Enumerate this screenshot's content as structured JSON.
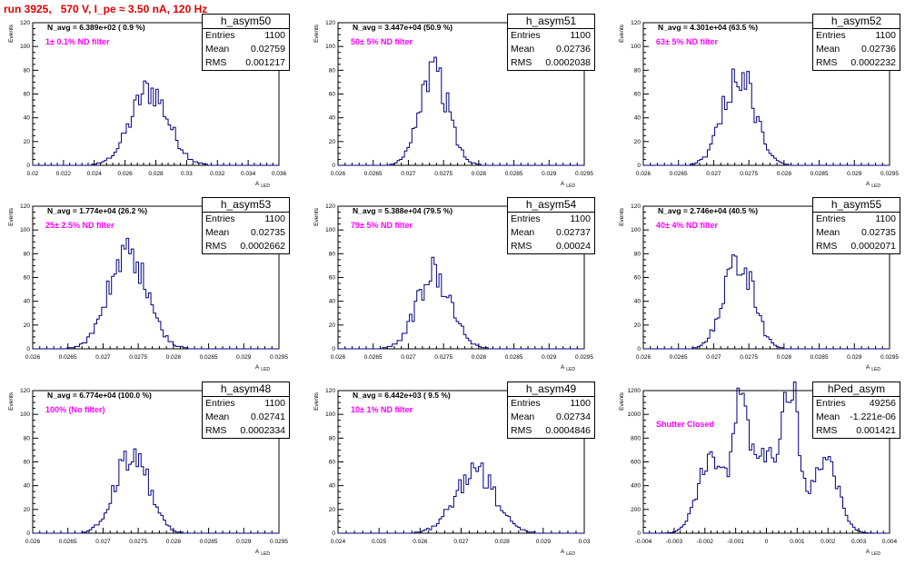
{
  "header": {
    "title": "run 3925,   570 V, I_pe ≈ 3.50 nA, 120 Hz"
  },
  "axis_labels": {
    "y": "Events",
    "x": "A",
    "x_sub": "LED"
  },
  "colors": {
    "histogram": "#000080",
    "title": "#e00000",
    "annotation": "#ff00ff",
    "axis": "#000000"
  },
  "chart_data": [
    {
      "type": "histogram",
      "name": "h_asym50",
      "stats": {
        "entries_label": "Entries",
        "mean_label": "Mean",
        "rms_label": "RMS",
        "entries": "1100",
        "mean": "0.02759",
        "rms": "0.001217"
      },
      "navg_text": "N_avg = 6.389e+02 ( 0.9 %)",
      "filter_text": "1± 0.1% ND filter",
      "xlim": [
        0.02,
        0.036
      ],
      "ylim": [
        0,
        120
      ],
      "xticks": [
        "0.02",
        "0.022",
        "0.024",
        "0.026",
        "0.028",
        "0.03",
        "0.032",
        "0.034",
        "0.036"
      ],
      "yticks": [
        "0",
        "20",
        "40",
        "60",
        "80",
        "100",
        "120"
      ],
      "mean": 0.02759,
      "rms": 0.001217,
      "peak": 65,
      "shape": "gauss"
    },
    {
      "type": "histogram",
      "name": "h_asym51",
      "stats": {
        "entries_label": "Entries",
        "mean_label": "Mean",
        "rms_label": "RMS",
        "entries": "1100",
        "mean": "0.02736",
        "rms": "0.0002038"
      },
      "navg_text": "N_avg = 3.447e+04 (50.9 %)",
      "filter_text": "50± 5% ND filter",
      "xlim": [
        0.026,
        0.0295
      ],
      "ylim": [
        0,
        120
      ],
      "xticks": [
        "0.026",
        "0.0265",
        "0.027",
        "0.0275",
        "0.028",
        "0.0285",
        "0.029",
        "0.0295"
      ],
      "yticks": [
        "0",
        "20",
        "40",
        "60",
        "80",
        "100",
        "120"
      ],
      "mean": 0.02736,
      "rms": 0.0002038,
      "peak": 83,
      "shape": "gauss"
    },
    {
      "type": "histogram",
      "name": "h_asym52",
      "stats": {
        "entries_label": "Entries",
        "mean_label": "Mean",
        "rms_label": "RMS",
        "entries": "1100",
        "mean": "0.02736",
        "rms": "0.0002232"
      },
      "navg_text": "N_avg = 4.301e+04 (63.5 %)",
      "filter_text": "63± 5% ND filter",
      "xlim": [
        0.026,
        0.0295
      ],
      "ylim": [
        0,
        120
      ],
      "xticks": [
        "0.026",
        "0.0265",
        "0.027",
        "0.0275",
        "0.028",
        "0.0285",
        "0.029",
        "0.0295"
      ],
      "yticks": [
        "0",
        "20",
        "40",
        "60",
        "80",
        "100",
        "120"
      ],
      "mean": 0.02736,
      "rms": 0.0002232,
      "peak": 80,
      "shape": "gauss"
    },
    {
      "type": "histogram",
      "name": "h_asym53",
      "stats": {
        "entries_label": "Entries",
        "mean_label": "Mean",
        "rms_label": "RMS",
        "entries": "1100",
        "mean": "0.02735",
        "rms": "0.0002662"
      },
      "navg_text": "N_avg = 1.774e+04 (26.2 %)",
      "filter_text": "25± 2.5% ND filter",
      "xlim": [
        0.026,
        0.0295
      ],
      "ylim": [
        0,
        120
      ],
      "xticks": [
        "0.026",
        "0.0265",
        "0.027",
        "0.0275",
        "0.028",
        "0.0285",
        "0.029",
        "0.0295"
      ],
      "yticks": [
        "0",
        "20",
        "40",
        "60",
        "80",
        "100",
        "120"
      ],
      "mean": 0.02735,
      "rms": 0.0002662,
      "peak": 84,
      "shape": "gauss"
    },
    {
      "type": "histogram",
      "name": "h_asym54",
      "stats": {
        "entries_label": "Entries",
        "mean_label": "Mean",
        "rms_label": "RMS",
        "entries": "1100",
        "mean": "0.02737",
        "rms": "0.00024"
      },
      "navg_text": "N_avg = 5.388e+04 (79.5 %)",
      "filter_text": "79± 5% ND filter",
      "xlim": [
        0.026,
        0.0295
      ],
      "ylim": [
        0,
        120
      ],
      "xticks": [
        "0.026",
        "0.0265",
        "0.027",
        "0.0275",
        "0.028",
        "0.0285",
        "0.029",
        "0.0295"
      ],
      "yticks": [
        "0",
        "20",
        "40",
        "60",
        "80",
        "100",
        "120"
      ],
      "mean": 0.02737,
      "rms": 0.00024,
      "peak": 66,
      "shape": "gauss"
    },
    {
      "type": "histogram",
      "name": "h_asym55",
      "stats": {
        "entries_label": "Entries",
        "mean_label": "Mean",
        "rms_label": "RMS",
        "entries": "1100",
        "mean": "0.02735",
        "rms": "0.0002071"
      },
      "navg_text": "N_avg = 2.746e+04 (40.5 %)",
      "filter_text": "40± 4% ND filter",
      "xlim": [
        0.026,
        0.0295
      ],
      "ylim": [
        0,
        120
      ],
      "xticks": [
        "0.026",
        "0.0265",
        "0.027",
        "0.0275",
        "0.028",
        "0.0285",
        "0.029",
        "0.0295"
      ],
      "yticks": [
        "0",
        "20",
        "40",
        "60",
        "80",
        "100",
        "120"
      ],
      "mean": 0.02735,
      "rms": 0.0002071,
      "peak": 80,
      "shape": "gauss"
    },
    {
      "type": "histogram",
      "name": "h_asym48",
      "stats": {
        "entries_label": "Entries",
        "mean_label": "Mean",
        "rms_label": "RMS",
        "entries": "1100",
        "mean": "0.02741",
        "rms": "0.0002334"
      },
      "navg_text": "N_avg = 6.774e+04 (100.0 %)",
      "filter_text": "100% (No filter)",
      "xlim": [
        0.026,
        0.0295
      ],
      "ylim": [
        0,
        120
      ],
      "xticks": [
        "0.026",
        "0.0265",
        "0.027",
        "0.0275",
        "0.028",
        "0.0285",
        "0.029",
        "0.0295"
      ],
      "yticks": [
        "0",
        "20",
        "40",
        "60",
        "80",
        "100",
        "120"
      ],
      "mean": 0.02741,
      "rms": 0.0002334,
      "peak": 70,
      "shape": "gauss"
    },
    {
      "type": "histogram",
      "name": "h_asym49",
      "stats": {
        "entries_label": "Entries",
        "mean_label": "Mean",
        "rms_label": "RMS",
        "entries": "1100",
        "mean": "0.02734",
        "rms": "0.0004846"
      },
      "navg_text": "N_avg = 6.442e+03 ( 9.5 %)",
      "filter_text": "10± 1% ND filter",
      "xlim": [
        0.024,
        0.03
      ],
      "ylim": [
        0,
        120
      ],
      "xticks": [
        "0.024",
        "0.025",
        "0.026",
        "0.027",
        "0.028",
        "0.029",
        "0.03"
      ],
      "yticks": [
        "0",
        "20",
        "40",
        "60",
        "80",
        "100",
        "120"
      ],
      "mean": 0.02734,
      "rms": 0.0004846,
      "peak": 53,
      "shape": "gauss"
    },
    {
      "type": "histogram",
      "name": "hPed_asym",
      "stats": {
        "entries_label": "Entries",
        "mean_label": "Mean",
        "rms_label": "RMS",
        "entries": "49256",
        "mean": "-1.221e-06",
        "rms": "0.001421"
      },
      "navg_text": "",
      "filter_text": "Shutter Closed",
      "xlim": [
        -0.004,
        0.004
      ],
      "ylim": [
        0,
        1200
      ],
      "xticks": [
        "-0.004",
        "-0.003",
        "-0.002",
        "-0.001",
        "0",
        "0.001",
        "0.002",
        "0.003",
        "0.004"
      ],
      "yticks": [
        "0",
        "200",
        "400",
        "600",
        "800",
        "1000",
        "1200"
      ],
      "mean": -1.221e-06,
      "rms": 0.001421,
      "peak": 1160,
      "shape": "multi"
    }
  ]
}
